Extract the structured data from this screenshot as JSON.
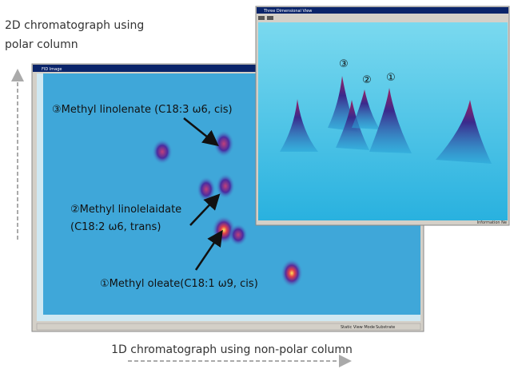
{
  "axis_labels": {
    "vertical": [
      "2D chromatograph using",
      "polar column"
    ],
    "horizontal": "1D chromatograph using non-polar column"
  },
  "fid_window": {
    "title": "FID Image",
    "status": [
      "Static View Mode",
      "Substrate"
    ]
  },
  "view_3d": {
    "title": "Three Dimensional View",
    "peak_labels": [
      "③",
      "②",
      "①"
    ],
    "status": "Information Ne"
  },
  "annotations": [
    {
      "lines": [
        "③Methyl linolenate (C18:3 ω6, cis)"
      ]
    },
    {
      "lines": [
        "②Methyl linolelaidate",
        "(C18:2 ω6, trans)"
      ]
    },
    {
      "lines": [
        "①Methyl oleate(C18:1 ω9, cis)"
      ]
    }
  ]
}
